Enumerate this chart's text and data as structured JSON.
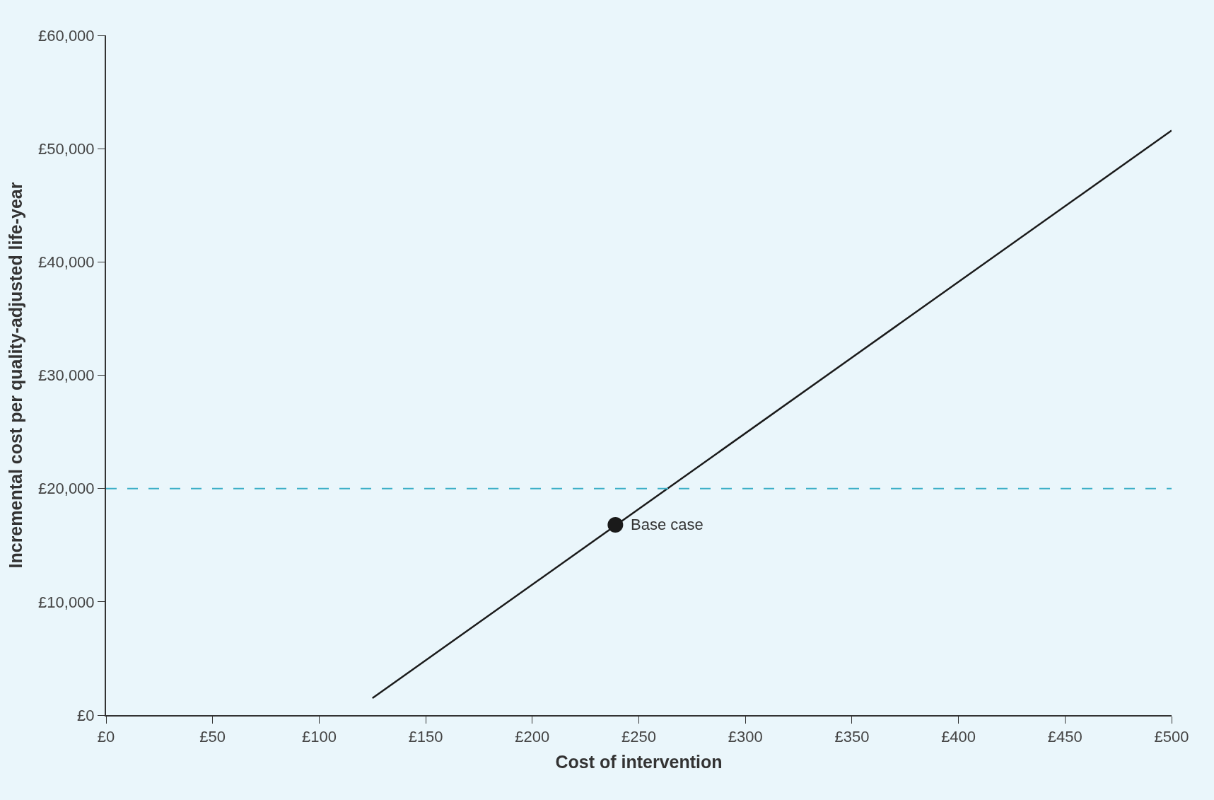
{
  "chart_data": {
    "type": "line",
    "xlabel": "Cost of intervention",
    "ylabel": "Incremental cost per quality-adjusted life-year",
    "series": [
      {
        "color": "#1a1a1a",
        "x": [
          125,
          500
        ],
        "values": [
          1500,
          51600
        ],
        "marker": "none",
        "line_style": "solid"
      },
      {
        "type": "scatter",
        "color": "#1a1a1a",
        "x": [
          239
        ],
        "values": [
          16800
        ],
        "marker": "circle"
      }
    ],
    "annotations": [
      {
        "text": "Base case",
        "x": 239,
        "y": 16800
      }
    ],
    "ref_lines": [
      {
        "axis": "y",
        "value": 20000,
        "label": null,
        "color": "#3aaec6",
        "line_style": "dashed"
      }
    ],
    "xlim": [
      0,
      500
    ],
    "xticks": [
      {
        "value": 0,
        "label": "£0"
      },
      {
        "value": 50,
        "label": "£50"
      },
      {
        "value": 100,
        "label": "£100"
      },
      {
        "value": 150,
        "label": "£150"
      },
      {
        "value": 200,
        "label": "£200"
      },
      {
        "value": 250,
        "label": "£250"
      },
      {
        "value": 300,
        "label": "£300"
      },
      {
        "value": 350,
        "label": "£350"
      },
      {
        "value": 400,
        "label": "£400"
      },
      {
        "value": 450,
        "label": "£450"
      },
      {
        "value": 500,
        "label": "£500"
      }
    ],
    "ylim": [
      0,
      60000
    ],
    "yticks": [
      {
        "value": 0,
        "label": "£0"
      },
      {
        "value": 10000,
        "label": "£10,000"
      },
      {
        "value": 20000,
        "label": "£20,000"
      },
      {
        "value": 30000,
        "label": "£30,000"
      },
      {
        "value": 40000,
        "label": "£40,000"
      },
      {
        "value": 50000,
        "label": "£50,000"
      },
      {
        "value": 60000,
        "label": "£60,000"
      }
    ],
    "grid": false
  }
}
